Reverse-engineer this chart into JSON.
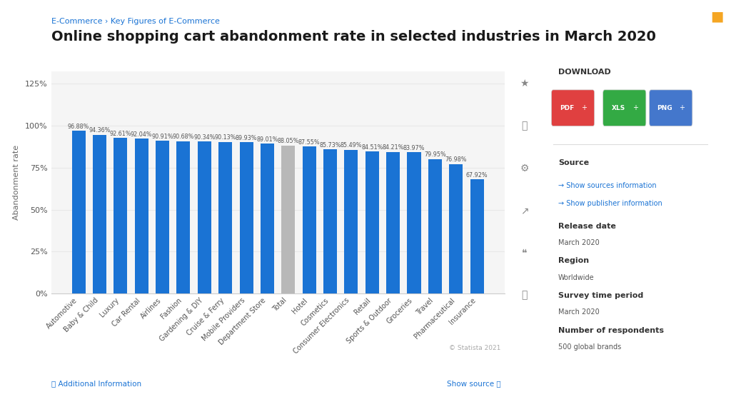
{
  "categories": [
    "Automotive",
    "Baby & Child",
    "Luxury",
    "Car Rental",
    "Airlines",
    "Fashion",
    "Gardening & DIY",
    "Cruise & Ferry",
    "Mobile Providers",
    "Department Store",
    "Total",
    "Hotel",
    "Cosmetics",
    "Consumer Electronics",
    "Retail",
    "Sports & Outdoor",
    "Groceries",
    "Travel",
    "Pharmaceutical",
    "Insurance"
  ],
  "values": [
    96.88,
    94.36,
    92.61,
    92.04,
    90.91,
    90.68,
    90.34,
    90.13,
    89.93,
    89.01,
    88.05,
    87.55,
    85.73,
    85.49,
    84.51,
    84.21,
    83.97,
    79.95,
    76.98,
    67.92
  ],
  "bar_colors": [
    "#1a73d4",
    "#1a73d4",
    "#1a73d4",
    "#1a73d4",
    "#1a73d4",
    "#1a73d4",
    "#1a73d4",
    "#1a73d4",
    "#1a73d4",
    "#1a73d4",
    "#b8b8b8",
    "#1a73d4",
    "#1a73d4",
    "#1a73d4",
    "#1a73d4",
    "#1a73d4",
    "#1a73d4",
    "#1a73d4",
    "#1a73d4",
    "#1a73d4"
  ],
  "ylabel": "Abandonment rate",
  "yticks": [
    0,
    25,
    50,
    75,
    100,
    125
  ],
  "ytick_labels": [
    "0%",
    "25%",
    "50%",
    "75%",
    "100%",
    "125%"
  ],
  "value_labels": [
    "96.88%",
    "94.36%",
    "92.61%",
    "92.04%",
    "90.91%",
    "90.68%",
    "90.34%",
    "90.13%",
    "89.93%",
    "89.01%",
    "88.05%",
    "87.55%",
    "85.73%",
    "85.49%",
    "84.51%",
    "84.21%",
    "83.97%",
    "79.95%",
    "76.98%",
    "67.92%"
  ],
  "breadcrumb": "E-Commerce › Key Figures of E-Commerce",
  "title": "Online shopping cart abandonment rate in selected industries in March 2020",
  "sidebar_title": "DOWNLOAD",
  "sidebar_source_label": "Source",
  "sidebar_source_link1": "→ Show sources information",
  "sidebar_source_link2": "→ Show publisher information",
  "sidebar_release_label": "Release date",
  "sidebar_release_value": "March 2020",
  "sidebar_region_label": "Region",
  "sidebar_region_value": "Worldwide",
  "sidebar_survey_label": "Survey time period",
  "sidebar_survey_value": "March 2020",
  "sidebar_respondents_label": "Number of respondents",
  "sidebar_respondents_value": "500 global brands",
  "copyright": "© Statista 2021",
  "footer_left": "ⓘ Additional Information",
  "footer_right": "Show source ⓘ",
  "background_color": "#ffffff",
  "plot_bg_color": "#f5f5f5",
  "sidebar_bg_color": "#f9f9f9",
  "grid_color": "#e8e8e8",
  "bar_width": 0.65,
  "tick_fontsize": 8,
  "label_fontsize": 7,
  "value_fontsize": 5.8,
  "ylabel_fontsize": 8,
  "title_fontsize": 14,
  "breadcrumb_fontsize": 8
}
